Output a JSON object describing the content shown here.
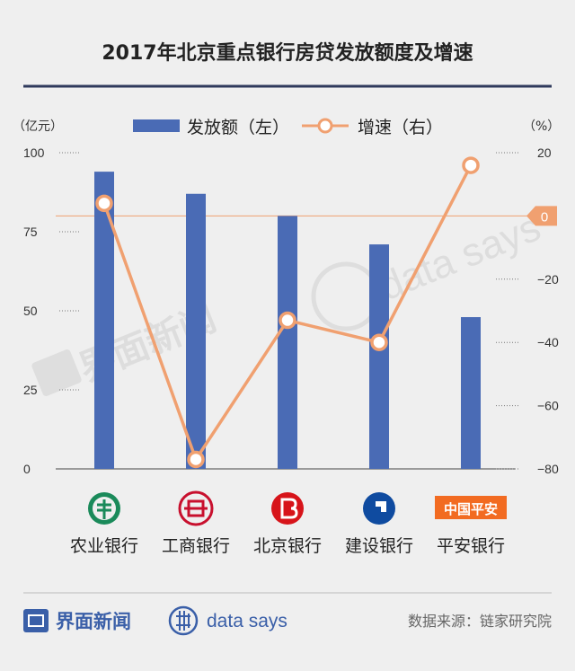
{
  "title": "2017年北京重点银行房贷发放额度及增速",
  "left_unit": "（亿元）",
  "right_unit": "（%）",
  "legend": {
    "bar_label": "发放额（左）",
    "line_label": "增速（右）"
  },
  "colors": {
    "bar": "#4a6bb5",
    "line": "#f0a070",
    "title_rule": "#2f3a5c",
    "zero_badge": "#f0a070",
    "brand": "#3a5fa8"
  },
  "chart_data": {
    "type": "bar",
    "title": "2017年北京重点银行房贷发放额度及增速",
    "categories": [
      "农业银行",
      "工商银行",
      "北京银行",
      "建设银行",
      "平安银行"
    ],
    "series": [
      {
        "name": "发放额（左）",
        "type": "bar",
        "axis": "left",
        "values": [
          94,
          87,
          80,
          71,
          48
        ]
      },
      {
        "name": "增速（右）",
        "type": "line",
        "axis": "right",
        "values": [
          4,
          -77,
          -33,
          -40,
          16
        ]
      }
    ],
    "left_axis": {
      "ylim": [
        0,
        100
      ],
      "ticks": [
        "0",
        "25",
        "50",
        "75",
        "100"
      ]
    },
    "right_axis": {
      "ylim": [
        -80,
        20
      ],
      "ticks": [
        "20",
        "0",
        "-20",
        "-40",
        "-60",
        "-80"
      ]
    },
    "zero_label": "0",
    "grid": false,
    "legend_position": "top"
  },
  "bank_logos": [
    {
      "category": "农业银行",
      "icon": "abc-logo-icon",
      "color": "#1a8a5a"
    },
    {
      "category": "工商银行",
      "icon": "icbc-logo-icon",
      "color": "#c8102e"
    },
    {
      "category": "北京银行",
      "icon": "bob-logo-icon",
      "color": "#d7141a"
    },
    {
      "category": "建设银行",
      "icon": "ccb-logo-icon",
      "color": "#0f4ba0"
    },
    {
      "category": "平安银行",
      "icon": "pingan-logo-icon",
      "color": "#f26b21",
      "text": "中国平安"
    }
  ],
  "watermarks": {
    "left": "界面新闻",
    "right": "data says"
  },
  "footer": {
    "brand": "界面新闻",
    "datasays": "data says",
    "source": "数据来源：链家研究院"
  }
}
